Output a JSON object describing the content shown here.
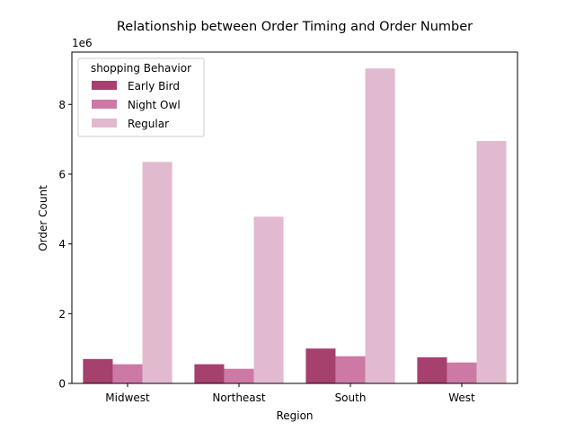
{
  "chart_data": {
    "type": "bar",
    "title": "Relationship between Order Timing and Order Number",
    "xlabel": "Region",
    "ylabel": "Order Count",
    "y_scale_label": "1e6",
    "categories": [
      "Midwest",
      "Northeast",
      "South",
      "West"
    ],
    "series": [
      {
        "name": "Early Bird",
        "color": "#a6406d",
        "values": [
          700000,
          550000,
          1000000,
          750000
        ]
      },
      {
        "name": "Night Owl",
        "color": "#cc7aa5",
        "values": [
          550000,
          420000,
          780000,
          600000
        ]
      },
      {
        "name": "Regular",
        "color": "#e2bad0",
        "values": [
          6350000,
          4780000,
          9030000,
          6950000
        ]
      }
    ],
    "ylim": [
      0,
      9500000
    ],
    "yticks": [
      0,
      2000000,
      4000000,
      6000000,
      8000000
    ],
    "ytick_labels": [
      "0",
      "2",
      "4",
      "6",
      "8"
    ],
    "legend": {
      "title": "shopping Behavior",
      "placement": "top-left"
    },
    "grid": false
  }
}
